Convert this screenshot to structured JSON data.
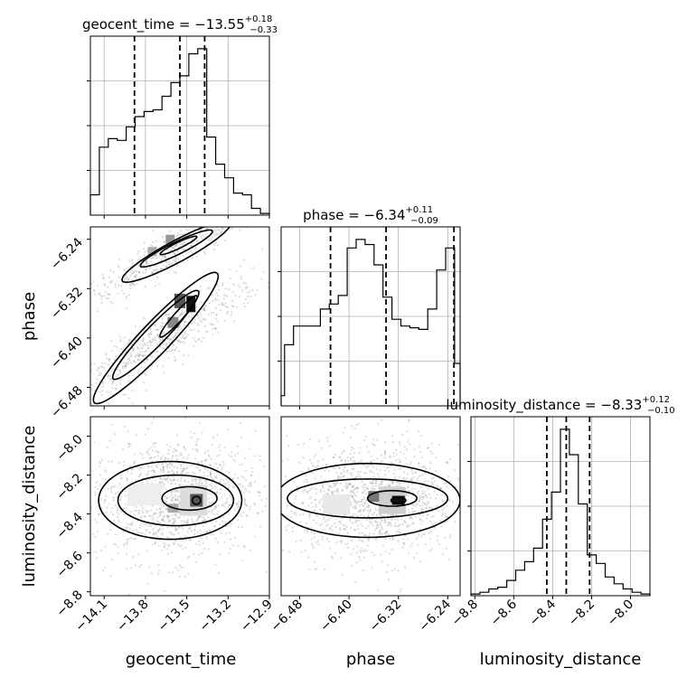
{
  "chart_data": {
    "type": "corner",
    "parameters": [
      "geocent_time",
      "phase",
      "luminosity_distance"
    ],
    "titles": [
      {
        "name": "geocent_time",
        "median": "−13.55",
        "plus": "+0.18",
        "minus": "−0.33"
      },
      {
        "name": "phase",
        "median": "−6.34",
        "plus": "+0.11",
        "minus": "−0.09"
      },
      {
        "name": "luminosity_distance",
        "median": "−8.33",
        "plus": "+0.12",
        "minus": "−0.10"
      }
    ],
    "ranges": {
      "geocent_time": [
        -14.2,
        -12.9
      ],
      "phase": [
        -6.51,
        -6.22
      ],
      "luminosity_distance": [
        -8.82,
        -7.9
      ]
    },
    "ticks": {
      "geocent_time": [
        -14.1,
        -13.8,
        -13.5,
        -13.2,
        -12.9
      ],
      "phase": [
        -6.48,
        -6.4,
        -6.32,
        -6.24
      ],
      "luminosity_distance": [
        -8.8,
        -8.6,
        -8.4,
        -8.2,
        -8.0
      ]
    },
    "tick_labels": {
      "geocent_time": [
        "−14.1",
        "−13.8",
        "−13.5",
        "−13.2",
        "−12.9"
      ],
      "phase": [
        "−6.48",
        "−6.40",
        "−6.32",
        "−6.24"
      ],
      "luminosity_distance": [
        "−8.8",
        "−8.6",
        "−8.4",
        "−8.2",
        "−8.0"
      ]
    },
    "quantiles": {
      "geocent_time": [
        -13.88,
        -13.55,
        -13.37
      ],
      "phase": [
        -6.43,
        -6.34,
        -6.23
      ],
      "luminosity_distance": [
        -8.43,
        -8.33,
        -8.21
      ]
    },
    "histograms": {
      "geocent_time": {
        "edges": [
          -14.2,
          -14.135,
          -14.07,
          -14.005,
          -13.94,
          -13.875,
          -13.81,
          -13.745,
          -13.68,
          -13.615,
          -13.55,
          -13.485,
          -13.42,
          -13.355,
          -13.29,
          -13.225,
          -13.16,
          -13.095,
          -13.03,
          -12.965,
          -12.9
        ],
        "counts": [
          0.12,
          0.4,
          0.45,
          0.44,
          0.52,
          0.58,
          0.61,
          0.62,
          0.7,
          0.78,
          0.82,
          0.95,
          0.98,
          0.46,
          0.3,
          0.22,
          0.13,
          0.12,
          0.04,
          0.01
        ]
      },
      "phase": {
        "edges": [
          -6.51,
          -6.5045,
          -6.4899,
          -6.4754,
          -6.4609,
          -6.4464,
          -6.4319,
          -6.4174,
          -6.4029,
          -6.3884,
          -6.3739,
          -6.3594,
          -6.3449,
          -6.3304,
          -6.3159,
          -6.3014,
          -6.2869,
          -6.2724,
          -6.2579,
          -6.2434,
          -6.2289,
          -6.22
        ],
        "counts": [
          0.06,
          0.36,
          0.47,
          0.47,
          0.47,
          0.57,
          0.6,
          0.65,
          0.93,
          0.98,
          0.95,
          0.83,
          0.64,
          0.51,
          0.47,
          0.46,
          0.45,
          0.57,
          0.8,
          0.93,
          0.25
        ]
      },
      "luminosity_distance": {
        "edges": [
          -8.82,
          -8.774,
          -8.728,
          -8.682,
          -8.636,
          -8.59,
          -8.544,
          -8.498,
          -8.452,
          -8.406,
          -8.36,
          -8.314,
          -8.268,
          -8.222,
          -8.176,
          -8.13,
          -8.084,
          -8.038,
          -7.992,
          -7.946,
          -7.9
        ],
        "counts": [
          0.01,
          0.02,
          0.04,
          0.05,
          0.09,
          0.15,
          0.2,
          0.28,
          0.45,
          0.61,
          0.98,
          0.83,
          0.54,
          0.24,
          0.19,
          0.11,
          0.07,
          0.04,
          0.02,
          0.01
        ]
      }
    }
  }
}
